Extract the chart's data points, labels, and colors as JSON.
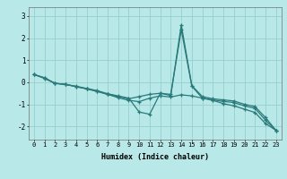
{
  "xlabel": "Humidex (Indice chaleur)",
  "background_color": "#b8e8e8",
  "grid_color": "#96cece",
  "line_color": "#2a7a7a",
  "xlim": [
    -0.5,
    23.5
  ],
  "ylim": [
    -2.6,
    3.4
  ],
  "yticks": [
    -2,
    -1,
    0,
    1,
    2,
    3
  ],
  "xticks": [
    0,
    1,
    2,
    3,
    4,
    5,
    6,
    7,
    8,
    9,
    10,
    11,
    12,
    13,
    14,
    15,
    16,
    17,
    18,
    19,
    20,
    21,
    22,
    23
  ],
  "series": [
    {
      "x": [
        0,
        1,
        2,
        3,
        4,
        5,
        6,
        7,
        8,
        9,
        10,
        11,
        12,
        13,
        14,
        15,
        16,
        17,
        18,
        19,
        20,
        21,
        22,
        23
      ],
      "y": [
        0.35,
        0.2,
        -0.05,
        -0.1,
        -0.18,
        -0.28,
        -0.38,
        -0.52,
        -0.62,
        -0.72,
        -1.35,
        -1.45,
        -0.5,
        -0.55,
        2.38,
        -0.18,
        -0.72,
        -0.8,
        -0.87,
        -0.92,
        -1.07,
        -1.18,
        -1.72,
        -2.18
      ]
    },
    {
      "x": [
        0,
        1,
        2,
        3,
        4,
        5,
        6,
        7,
        8,
        9,
        10,
        11,
        12,
        13,
        14,
        15,
        16,
        17,
        18,
        19,
        20,
        21,
        22,
        23
      ],
      "y": [
        0.35,
        0.2,
        -0.05,
        -0.1,
        -0.2,
        -0.3,
        -0.4,
        -0.55,
        -0.65,
        -0.75,
        -0.65,
        -0.55,
        -0.5,
        -0.6,
        2.6,
        -0.15,
        -0.65,
        -0.75,
        -0.8,
        -0.85,
        -1.0,
        -1.1,
        -1.6,
        -2.18
      ]
    },
    {
      "x": [
        0,
        1,
        2,
        3,
        4,
        5,
        6,
        7,
        8,
        9,
        10,
        11,
        12,
        13,
        14,
        15,
        16,
        17,
        18,
        19,
        20,
        21,
        22,
        23
      ],
      "y": [
        0.35,
        0.17,
        -0.05,
        -0.1,
        -0.2,
        -0.3,
        -0.42,
        -0.55,
        -0.7,
        -0.82,
        -0.88,
        -0.72,
        -0.62,
        -0.67,
        -0.57,
        -0.62,
        -0.72,
        -0.82,
        -0.97,
        -1.07,
        -1.22,
        -1.37,
        -1.87,
        -2.18
      ]
    }
  ]
}
